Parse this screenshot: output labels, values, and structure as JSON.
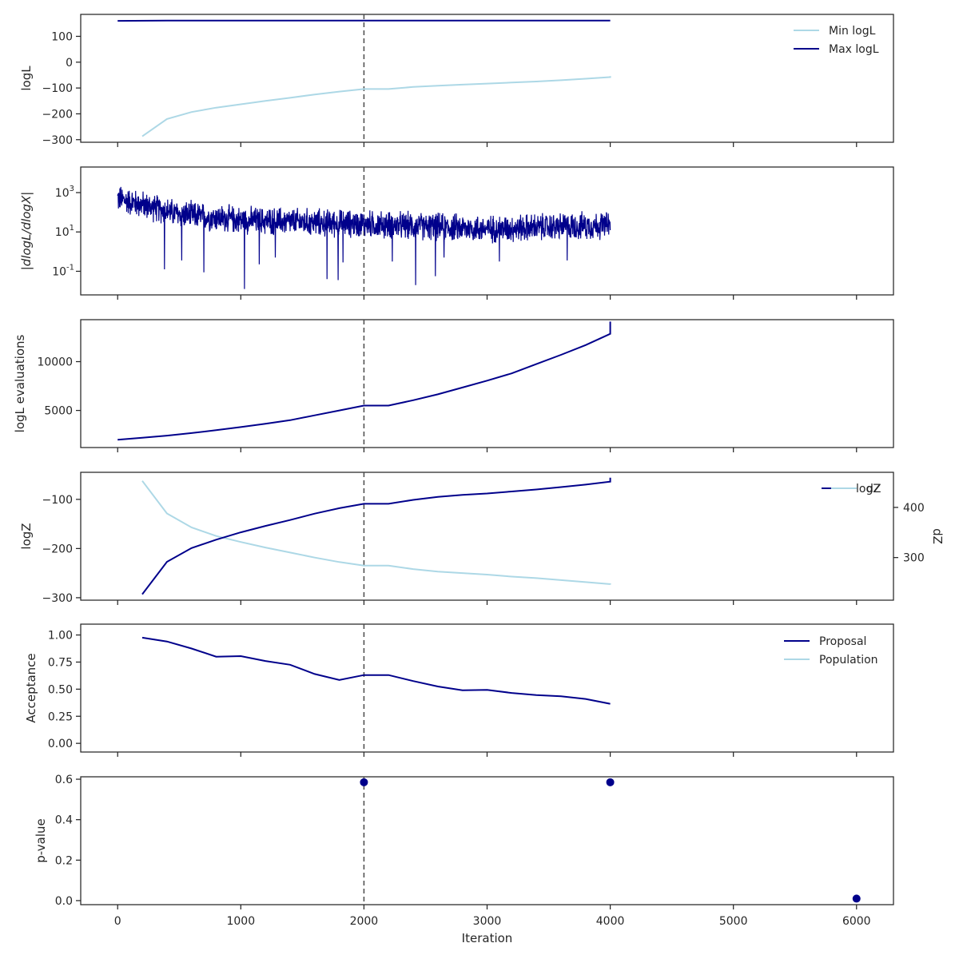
{
  "colors": {
    "navy": "#00008b",
    "light": "#add8e6",
    "axis": "#262626",
    "vline": "#4a4a4a"
  },
  "xaxis": {
    "label": "Iteration",
    "xlim": [
      -300,
      6300
    ],
    "ticks": [
      0,
      1000,
      2000,
      3000,
      4000,
      5000,
      6000
    ],
    "tick_labels": [
      "0",
      "1000",
      "2000",
      "3000",
      "4000",
      "5000",
      "6000"
    ]
  },
  "vline": 2000,
  "chart_data": [
    {
      "type": "line",
      "ylabel": "logL",
      "ylim": [
        -310,
        185
      ],
      "yticks": [
        -300,
        -200,
        -100,
        0,
        100
      ],
      "ytick_labels": [
        "−300",
        "−200",
        "−100",
        "0",
        "100"
      ],
      "legend": "top-right",
      "series": [
        {
          "name": "Min logL",
          "color": "light",
          "x": [
            200,
            400,
            600,
            800,
            1000,
            1200,
            1400,
            1600,
            1800,
            2000,
            2200,
            2400,
            2600,
            2800,
            3000,
            3200,
            3400,
            3600,
            3800,
            4000,
            4000
          ],
          "y": [
            -287,
            -220,
            -193,
            -176,
            -163,
            -150,
            -138,
            -125,
            -114,
            -104,
            -104,
            -96,
            -91,
            -87,
            -83,
            -79,
            -75,
            -70,
            -64,
            -58,
            -54
          ]
        },
        {
          "name": "Max logL",
          "color": "navy",
          "x": [
            0,
            400,
            1000,
            2000,
            3000,
            4000
          ],
          "y": [
            160,
            161,
            161,
            161,
            161,
            161
          ]
        }
      ]
    },
    {
      "type": "line",
      "ylabel": "|dlogL/dlogX|",
      "yscale": "log",
      "ylim_log10": [
        -2.2,
        4.3
      ],
      "yticks_exp": [
        "-1",
        "1",
        "3"
      ],
      "series": [
        {
          "name": "",
          "color": "navy",
          "x_range": [
            0,
            4000
          ],
          "trend_log10": [
            [
              0,
              2.7
            ],
            [
              500,
              1.9
            ],
            [
              1000,
              1.6
            ],
            [
              2000,
              1.4
            ],
            [
              3000,
              1.15
            ],
            [
              4000,
              1.35
            ]
          ],
          "noise": 0.55,
          "dips": [
            [
              380,
              -0.9
            ],
            [
              520,
              -0.45
            ],
            [
              700,
              -1.05
            ],
            [
              1030,
              -1.9
            ],
            [
              1150,
              -0.65
            ],
            [
              1280,
              -0.3
            ],
            [
              1700,
              -1.4
            ],
            [
              1790,
              -1.45
            ],
            [
              1830,
              -0.55
            ],
            [
              2230,
              -0.5
            ],
            [
              2420,
              -1.7
            ],
            [
              2580,
              -1.25
            ],
            [
              2650,
              -0.3
            ],
            [
              3100,
              -0.5
            ],
            [
              3650,
              -0.45
            ]
          ]
        }
      ]
    },
    {
      "type": "line",
      "ylabel": "logL evaluations",
      "ylim": [
        1200,
        14300
      ],
      "yticks": [
        5000,
        10000
      ],
      "ytick_labels": [
        "5000",
        "10000"
      ],
      "series": [
        {
          "name": "",
          "color": "navy",
          "x": [
            0,
            200,
            400,
            600,
            800,
            1000,
            1200,
            1400,
            1600,
            1800,
            2000,
            2200,
            2400,
            2600,
            2800,
            3000,
            3200,
            3400,
            3600,
            3800,
            4000,
            4000
          ],
          "y": [
            2000,
            2200,
            2420,
            2680,
            2980,
            3300,
            3640,
            4000,
            4500,
            5000,
            5500,
            5500,
            6050,
            6650,
            7350,
            8050,
            8800,
            9750,
            10700,
            11700,
            12850,
            14100
          ]
        }
      ]
    },
    {
      "type": "line",
      "ylabel": "logZ",
      "ylim": [
        -305,
        -45
      ],
      "yticks": [
        -300,
        -200,
        -100
      ],
      "ytick_labels": [
        "−300",
        "−200",
        "−100"
      ],
      "y2label": "dZ",
      "y2lim": [
        215,
        470
      ],
      "y2ticks": [
        300,
        400
      ],
      "y2tick_labels": [
        "300",
        "400"
      ],
      "legend": "top-right",
      "series": [
        {
          "name": "logZ",
          "color": "navy",
          "axis": "left",
          "x": [
            200,
            400,
            600,
            800,
            1000,
            1200,
            1400,
            1600,
            1800,
            2000,
            2200,
            2400,
            2600,
            2800,
            3000,
            3200,
            3400,
            3600,
            3800,
            4000,
            4000
          ],
          "y": [
            -293,
            -227,
            -199,
            -182,
            -167,
            -154,
            -142,
            -129,
            -118,
            -109,
            -109,
            -101,
            -95,
            -91,
            -88,
            -84,
            -80,
            -75,
            -70,
            -64,
            -56
          ]
        },
        {
          "name": "dZ",
          "color": "light",
          "axis": "right",
          "x": [
            200,
            400,
            600,
            800,
            1000,
            1200,
            1400,
            1600,
            1800,
            2000,
            2200,
            2400,
            2600,
            2800,
            3000,
            3200,
            3400,
            3600,
            3800,
            4000,
            4000
          ],
          "y": [
            453,
            388,
            360,
            343,
            331,
            320,
            310,
            300,
            291,
            284,
            284,
            277,
            272,
            269,
            266,
            262,
            259,
            255,
            251,
            247,
            246
          ]
        }
      ]
    },
    {
      "type": "line",
      "ylabel": "Acceptance",
      "ylim": [
        -0.08,
        1.1
      ],
      "yticks": [
        0,
        0.25,
        0.5,
        0.75,
        1.0
      ],
      "ytick_labels": [
        "0.00",
        "0.25",
        "0.50",
        "0.75",
        "1.00"
      ],
      "legend": "top-right",
      "series": [
        {
          "name": "Proposal",
          "color": "navy",
          "x": [
            200,
            400,
            600,
            800,
            1000,
            1200,
            1400,
            1600,
            1800,
            2000,
            2200,
            2400,
            2600,
            2800,
            3000,
            3200,
            3400,
            3600,
            3800,
            4000
          ],
          "y": [
            0.975,
            0.94,
            0.875,
            0.8,
            0.805,
            0.76,
            0.725,
            0.64,
            0.585,
            0.63,
            0.63,
            0.575,
            0.525,
            0.49,
            0.493,
            0.465,
            0.445,
            0.435,
            0.41,
            0.365
          ]
        },
        {
          "name": "Population",
          "color": "light",
          "x": [],
          "y": []
        }
      ]
    },
    {
      "type": "scatter",
      "ylabel": "p-value",
      "ylim": [
        -0.02,
        0.612
      ],
      "yticks": [
        0,
        0.2,
        0.4,
        0.6
      ],
      "ytick_labels": [
        "0.0",
        "0.2",
        "0.4",
        "0.6"
      ],
      "series": [
        {
          "name": "",
          "color": "navy",
          "x": [
            2000,
            4000,
            6000
          ],
          "y": [
            0.585,
            0.585,
            0.01
          ]
        }
      ]
    }
  ]
}
